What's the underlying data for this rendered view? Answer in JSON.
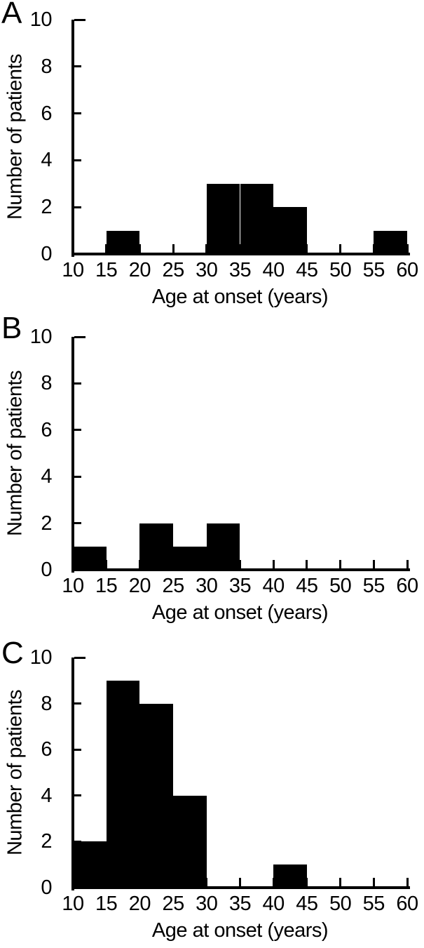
{
  "chart_data": [
    {
      "panel_label": "A",
      "type": "bar",
      "subtype": "histogram",
      "title": "",
      "xlabel": "Age at onset (years)",
      "ylabel": "Number of patients",
      "xlim": [
        10,
        60
      ],
      "ylim": [
        0,
        10
      ],
      "xticks": [
        10,
        15,
        20,
        25,
        30,
        35,
        40,
        45,
        50,
        55,
        60
      ],
      "yticks": [
        0,
        2,
        4,
        6,
        8,
        10
      ],
      "bin_edges": [
        10,
        15,
        20,
        25,
        30,
        35,
        40,
        45,
        50,
        55,
        60
      ],
      "counts": [
        0,
        1,
        0,
        0,
        3,
        3,
        2,
        0,
        0,
        1
      ],
      "bar_color": "#000000",
      "axis_color": "#000000",
      "background": "#ffffff",
      "grid": false,
      "legend": false
    },
    {
      "panel_label": "B",
      "type": "bar",
      "subtype": "histogram",
      "title": "",
      "xlabel": "Age at onset (years)",
      "ylabel": "Number of patients",
      "xlim": [
        10,
        60
      ],
      "ylim": [
        0,
        10
      ],
      "xticks": [
        10,
        15,
        20,
        25,
        30,
        35,
        40,
        45,
        50,
        55,
        60
      ],
      "yticks": [
        0,
        2,
        4,
        6,
        8,
        10
      ],
      "bin_edges": [
        10,
        15,
        20,
        25,
        30,
        35,
        40,
        45,
        50,
        55,
        60
      ],
      "counts": [
        1,
        0,
        2,
        1,
        2,
        0,
        0,
        0,
        0,
        0
      ],
      "bar_color": "#000000",
      "axis_color": "#000000",
      "background": "#ffffff",
      "grid": false,
      "legend": false
    },
    {
      "panel_label": "C",
      "type": "bar",
      "subtype": "histogram",
      "title": "",
      "xlabel": "Age at onset (years)",
      "ylabel": "Number of patients",
      "xlim": [
        10,
        60
      ],
      "ylim": [
        0,
        10
      ],
      "xticks": [
        10,
        15,
        20,
        25,
        30,
        35,
        40,
        45,
        50,
        55,
        60
      ],
      "yticks": [
        0,
        2,
        4,
        6,
        8,
        10
      ],
      "bin_edges": [
        10,
        15,
        20,
        25,
        30,
        35,
        40,
        45,
        50,
        55,
        60
      ],
      "counts": [
        2,
        9,
        8,
        4,
        0,
        0,
        1,
        0,
        0,
        0
      ],
      "bar_color": "#000000",
      "axis_color": "#000000",
      "background": "#ffffff",
      "grid": false,
      "legend": false
    }
  ]
}
